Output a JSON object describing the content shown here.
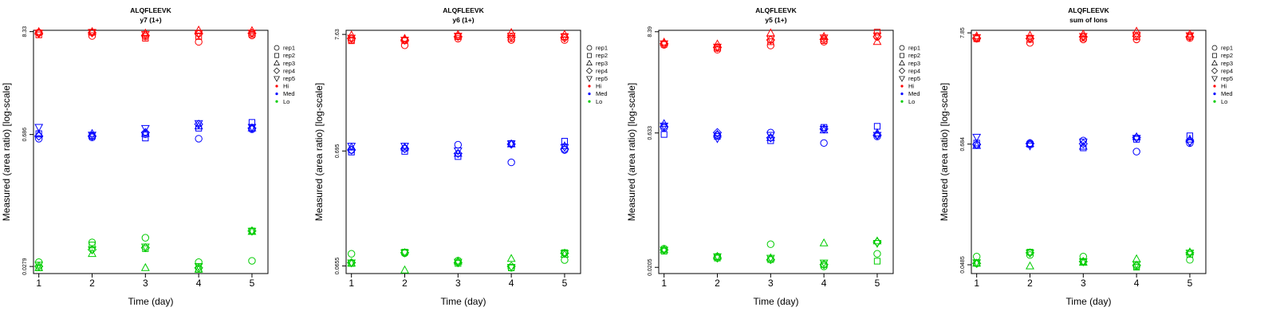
{
  "legend": {
    "entries": [
      {
        "label": "rep1",
        "symbol": "circle"
      },
      {
        "label": "rep2",
        "symbol": "square"
      },
      {
        "label": "rep3",
        "symbol": "triangle-up"
      },
      {
        "label": "rep4",
        "symbol": "diamond"
      },
      {
        "label": "rep5",
        "symbol": "triangle-down"
      },
      {
        "label": "Hi",
        "symbol": "dot",
        "color": "#ff0000"
      },
      {
        "label": "Med",
        "symbol": "dot",
        "color": "#0000ff"
      },
      {
        "label": "Lo",
        "symbol": "dot",
        "color": "#00cc00"
      }
    ]
  },
  "colors": {
    "Hi": "#ff0000",
    "Med": "#0000ff",
    "Lo": "#00cc00"
  },
  "chart_data": [
    {
      "type": "scatter",
      "title": "ALQFLEEVK",
      "subtitle": "y7 (1+)",
      "xlabel": "Time (day)",
      "ylabel": "Measured (area ratio) [log-scale]",
      "log_y": true,
      "x": [
        1,
        2,
        3,
        4,
        5
      ],
      "xlim": [
        0.9,
        5.3
      ],
      "ylim": [
        0.0235,
        8.6
      ],
      "yticks": [
        {
          "value": 0.0279,
          "label": "0.0279"
        },
        {
          "value": 0.686,
          "label": "0.686"
        },
        {
          "value": 8.33,
          "label": "8.33"
        }
      ],
      "series": [
        {
          "group": "Hi",
          "rep": "rep1",
          "values": [
            8.15,
            7.5,
            7.4,
            6.5,
            7.6
          ]
        },
        {
          "group": "Hi",
          "rep": "rep2",
          "values": [
            7.7,
            8.2,
            7.1,
            7.4,
            7.8
          ]
        },
        {
          "group": "Hi",
          "rep": "rep3",
          "values": [
            8.3,
            8.3,
            8.0,
            8.6,
            8.5
          ]
        },
        {
          "group": "Hi",
          "rep": "rep4",
          "values": [
            8.0,
            8.1,
            7.6,
            7.9,
            8.0
          ]
        },
        {
          "group": "Hi",
          "rep": "rep5",
          "values": [
            8.1,
            8.2,
            7.8,
            8.0,
            8.1
          ]
        },
        {
          "group": "Med",
          "rep": "rep1",
          "values": [
            0.62,
            0.64,
            0.69,
            0.62,
            0.78
          ]
        },
        {
          "group": "Med",
          "rep": "rep2",
          "values": [
            0.7,
            0.66,
            0.63,
            0.8,
            0.92
          ]
        },
        {
          "group": "Med",
          "rep": "rep3",
          "values": [
            0.69,
            0.7,
            0.7,
            0.84,
            0.8
          ]
        },
        {
          "group": "Med",
          "rep": "rep4",
          "values": [
            0.66,
            0.66,
            0.72,
            0.88,
            0.8
          ]
        },
        {
          "group": "Med",
          "rep": "rep5",
          "values": [
            0.82,
            0.68,
            0.8,
            0.9,
            0.82
          ]
        },
        {
          "group": "Lo",
          "rep": "rep1",
          "values": [
            0.031,
            0.05,
            0.056,
            0.031,
            0.032
          ]
        },
        {
          "group": "Lo",
          "rep": "rep2",
          "values": [
            0.027,
            0.047,
            0.043,
            0.026,
            0.066
          ]
        },
        {
          "group": "Lo",
          "rep": "rep3",
          "values": [
            0.027,
            0.038,
            0.027,
            0.026,
            0.065
          ]
        },
        {
          "group": "Lo",
          "rep": "rep4",
          "values": [
            0.028,
            0.042,
            0.044,
            0.027,
            0.066
          ]
        },
        {
          "group": "Lo",
          "rep": "rep5",
          "values": [
            0.029,
            0.042,
            0.045,
            0.028,
            0.066
          ]
        }
      ]
    },
    {
      "type": "scatter",
      "title": "ALQFLEEVK",
      "subtitle": "y6 (1+)",
      "xlabel": "Time (day)",
      "ylabel": "Measured (area ratio) [log-scale]",
      "log_y": true,
      "x": [
        1,
        2,
        3,
        4,
        5
      ],
      "xlim": [
        0.9,
        5.3
      ],
      "ylim": [
        0.056,
        8.3
      ],
      "yticks": [
        {
          "value": 0.0655,
          "label": "0.0655"
        },
        {
          "value": 0.695,
          "label": "0.695"
        },
        {
          "value": 7.63,
          "label": "7.63"
        }
      ],
      "series": [
        {
          "group": "Hi",
          "rep": "rep1",
          "values": [
            6.8,
            6.1,
            7.0,
            6.8,
            6.8
          ]
        },
        {
          "group": "Hi",
          "rep": "rep2",
          "values": [
            6.7,
            6.7,
            7.3,
            7.0,
            7.3
          ]
        },
        {
          "group": "Hi",
          "rep": "rep3",
          "values": [
            7.5,
            7.0,
            7.6,
            7.9,
            7.6
          ]
        },
        {
          "group": "Hi",
          "rep": "rep4",
          "values": [
            7.0,
            6.8,
            7.3,
            7.2,
            7.1
          ]
        },
        {
          "group": "Hi",
          "rep": "rep5",
          "values": [
            7.1,
            6.8,
            7.4,
            7.4,
            7.3
          ]
        },
        {
          "group": "Med",
          "rep": "rep1",
          "values": [
            0.71,
            0.73,
            0.79,
            0.55,
            0.71
          ]
        },
        {
          "group": "Med",
          "rep": "rep2",
          "values": [
            0.68,
            0.69,
            0.62,
            0.81,
            0.85
          ]
        },
        {
          "group": "Med",
          "rep": "rep3",
          "values": [
            0.75,
            0.75,
            0.66,
            0.8,
            0.77
          ]
        },
        {
          "group": "Med",
          "rep": "rep4",
          "values": [
            0.71,
            0.73,
            0.66,
            0.8,
            0.72
          ]
        },
        {
          "group": "Med",
          "rep": "rep5",
          "values": [
            0.77,
            0.77,
            0.7,
            0.81,
            0.75
          ]
        },
        {
          "group": "Lo",
          "rep": "rep1",
          "values": [
            0.084,
            0.085,
            0.073,
            0.063,
            0.074
          ]
        },
        {
          "group": "Lo",
          "rep": "rep2",
          "values": [
            0.069,
            0.087,
            0.069,
            0.063,
            0.086
          ]
        },
        {
          "group": "Lo",
          "rep": "rep3",
          "values": [
            0.069,
            0.06,
            0.072,
            0.076,
            0.083
          ]
        },
        {
          "group": "Lo",
          "rep": "rep4",
          "values": [
            0.07,
            0.086,
            0.07,
            0.065,
            0.085
          ]
        },
        {
          "group": "Lo",
          "rep": "rep5",
          "values": [
            0.07,
            0.086,
            0.071,
            0.064,
            0.085
          ]
        }
      ]
    },
    {
      "type": "scatter",
      "title": "ALQFLEEVK",
      "subtitle": "y5 (1+)",
      "xlabel": "Time (day)",
      "ylabel": "Measured (area ratio) [log-scale]",
      "log_y": true,
      "x": [
        1,
        2,
        3,
        4,
        5
      ],
      "xlim": [
        0.9,
        5.3
      ],
      "ylim": [
        0.0175,
        8.7
      ],
      "yticks": [
        {
          "value": 0.0205,
          "label": "0.0205"
        },
        {
          "value": 0.633,
          "label": "0.633"
        },
        {
          "value": 8.39,
          "label": "8.39"
        }
      ],
      "series": [
        {
          "group": "Hi",
          "rep": "rep1",
          "values": [
            6.0,
            5.3,
            5.9,
            6.5,
            7.4
          ]
        },
        {
          "group": "Hi",
          "rep": "rep2",
          "values": [
            6.1,
            5.5,
            6.5,
            6.7,
            8.3
          ]
        },
        {
          "group": "Hi",
          "rep": "rep3",
          "values": [
            6.4,
            6.1,
            8.1,
            7.4,
            6.5
          ]
        },
        {
          "group": "Hi",
          "rep": "rep4",
          "values": [
            6.2,
            5.6,
            6.8,
            6.9,
            7.4
          ]
        },
        {
          "group": "Hi",
          "rep": "rep5",
          "values": [
            6.2,
            5.7,
            7.0,
            7.2,
            7.6
          ]
        },
        {
          "group": "Med",
          "rep": "rep1",
          "values": [
            0.72,
            0.6,
            0.64,
            0.49,
            0.58
          ]
        },
        {
          "group": "Med",
          "rep": "rep2",
          "values": [
            0.61,
            0.58,
            0.52,
            0.73,
            0.75
          ]
        },
        {
          "group": "Med",
          "rep": "rep3",
          "values": [
            0.8,
            0.61,
            0.56,
            0.68,
            0.63
          ]
        },
        {
          "group": "Med",
          "rep": "rep4",
          "values": [
            0.74,
            0.64,
            0.56,
            0.7,
            0.6
          ]
        },
        {
          "group": "Med",
          "rep": "rep5",
          "values": [
            0.76,
            0.55,
            0.6,
            0.7,
            0.6
          ]
        },
        {
          "group": "Lo",
          "rep": "rep1",
          "values": [
            0.033,
            0.027,
            0.037,
            0.021,
            0.029
          ]
        },
        {
          "group": "Lo",
          "rep": "rep2",
          "values": [
            0.031,
            0.026,
            0.025,
            0.022,
            0.024
          ]
        },
        {
          "group": "Lo",
          "rep": "rep3",
          "values": [
            0.032,
            0.027,
            0.026,
            0.038,
            0.04
          ]
        },
        {
          "group": "Lo",
          "rep": "rep4",
          "values": [
            0.032,
            0.026,
            0.025,
            0.022,
            0.039
          ]
        },
        {
          "group": "Lo",
          "rep": "rep5",
          "values": [
            0.032,
            0.027,
            0.026,
            0.023,
            0.038
          ]
        }
      ]
    },
    {
      "type": "scatter",
      "title": "ALQFLEEVK",
      "subtitle": "sum of Ions",
      "xlabel": "Time (day)",
      "ylabel": "Measured (area ratio) [log-scale]",
      "log_y": true,
      "x": [
        1,
        2,
        3,
        4,
        5
      ],
      "xlim": [
        0.9,
        5.3
      ],
      "ylim": [
        0.04,
        8.3
      ],
      "yticks": [
        {
          "value": 0.0485,
          "label": "0.0485"
        },
        {
          "value": 0.684,
          "label": "0.684"
        },
        {
          "value": 7.85,
          "label": "7.85"
        }
      ],
      "series": [
        {
          "group": "Hi",
          "rep": "rep1",
          "values": [
            6.9,
            6.3,
            6.8,
            6.8,
            7.0
          ]
        },
        {
          "group": "Hi",
          "rep": "rep2",
          "values": [
            6.9,
            6.8,
            7.0,
            7.2,
            7.3
          ]
        },
        {
          "group": "Hi",
          "rep": "rep3",
          "values": [
            7.3,
            7.4,
            7.6,
            8.1,
            7.6
          ]
        },
        {
          "group": "Hi",
          "rep": "rep4",
          "values": [
            7.0,
            6.9,
            7.2,
            7.3,
            7.2
          ]
        },
        {
          "group": "Hi",
          "rep": "rep5",
          "values": [
            7.1,
            7.0,
            7.3,
            7.5,
            7.4
          ]
        },
        {
          "group": "Med",
          "rep": "rep1",
          "values": [
            0.67,
            0.7,
            0.74,
            0.58,
            0.7
          ]
        },
        {
          "group": "Med",
          "rep": "rep2",
          "values": [
            0.7,
            0.68,
            0.63,
            0.76,
            0.82
          ]
        },
        {
          "group": "Med",
          "rep": "rep3",
          "values": [
            0.66,
            0.69,
            0.65,
            0.8,
            0.76
          ]
        },
        {
          "group": "Med",
          "rep": "rep4",
          "values": [
            0.68,
            0.69,
            0.69,
            0.79,
            0.73
          ]
        },
        {
          "group": "Med",
          "rep": "rep5",
          "values": [
            0.8,
            0.66,
            0.72,
            0.78,
            0.71
          ]
        },
        {
          "group": "Lo",
          "rep": "rep1",
          "values": [
            0.058,
            0.06,
            0.058,
            0.047,
            0.054
          ]
        },
        {
          "group": "Lo",
          "rep": "rep2",
          "values": [
            0.05,
            0.064,
            0.052,
            0.046,
            0.061
          ]
        },
        {
          "group": "Lo",
          "rep": "rep3",
          "values": [
            0.05,
            0.047,
            0.051,
            0.055,
            0.064
          ]
        },
        {
          "group": "Lo",
          "rep": "rep4",
          "values": [
            0.05,
            0.063,
            0.052,
            0.048,
            0.063
          ]
        },
        {
          "group": "Lo",
          "rep": "rep5",
          "values": [
            0.051,
            0.063,
            0.052,
            0.049,
            0.063
          ]
        }
      ]
    }
  ]
}
